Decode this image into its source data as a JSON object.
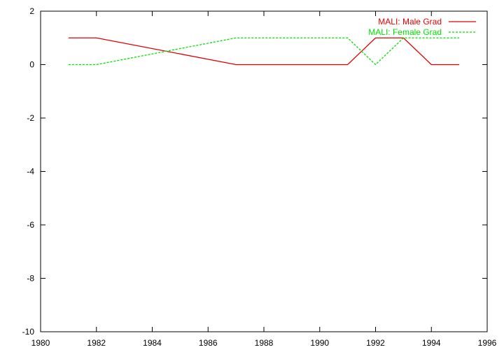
{
  "chart_data": {
    "type": "line",
    "title": "",
    "xlabel": "",
    "ylabel": "",
    "xlim": [
      1980,
      1996
    ],
    "ylim": [
      -10,
      2
    ],
    "xticks": [
      1980,
      1982,
      1984,
      1986,
      1988,
      1990,
      1992,
      1994,
      1996
    ],
    "yticks": [
      2,
      0,
      -2,
      -4,
      -6,
      -8,
      -10
    ],
    "grid": false,
    "legend_position": "top-right",
    "series": [
      {
        "name": "MALI: Male Grad",
        "color": "#e00000",
        "dash": "solid",
        "points": [
          [
            1981,
            1
          ],
          [
            1982,
            1
          ],
          [
            1987,
            0
          ],
          [
            1991,
            0
          ],
          [
            1992,
            1
          ],
          [
            1993,
            1
          ],
          [
            1994,
            0
          ],
          [
            1995,
            0
          ]
        ]
      },
      {
        "name": "MALI: Female Grad",
        "color": "#00e000",
        "dash": "dashed",
        "points": [
          [
            1981,
            0
          ],
          [
            1982,
            0
          ],
          [
            1987,
            1
          ],
          [
            1991,
            1
          ],
          [
            1992,
            0
          ],
          [
            1993,
            1
          ],
          [
            1995,
            1
          ]
        ]
      }
    ]
  }
}
